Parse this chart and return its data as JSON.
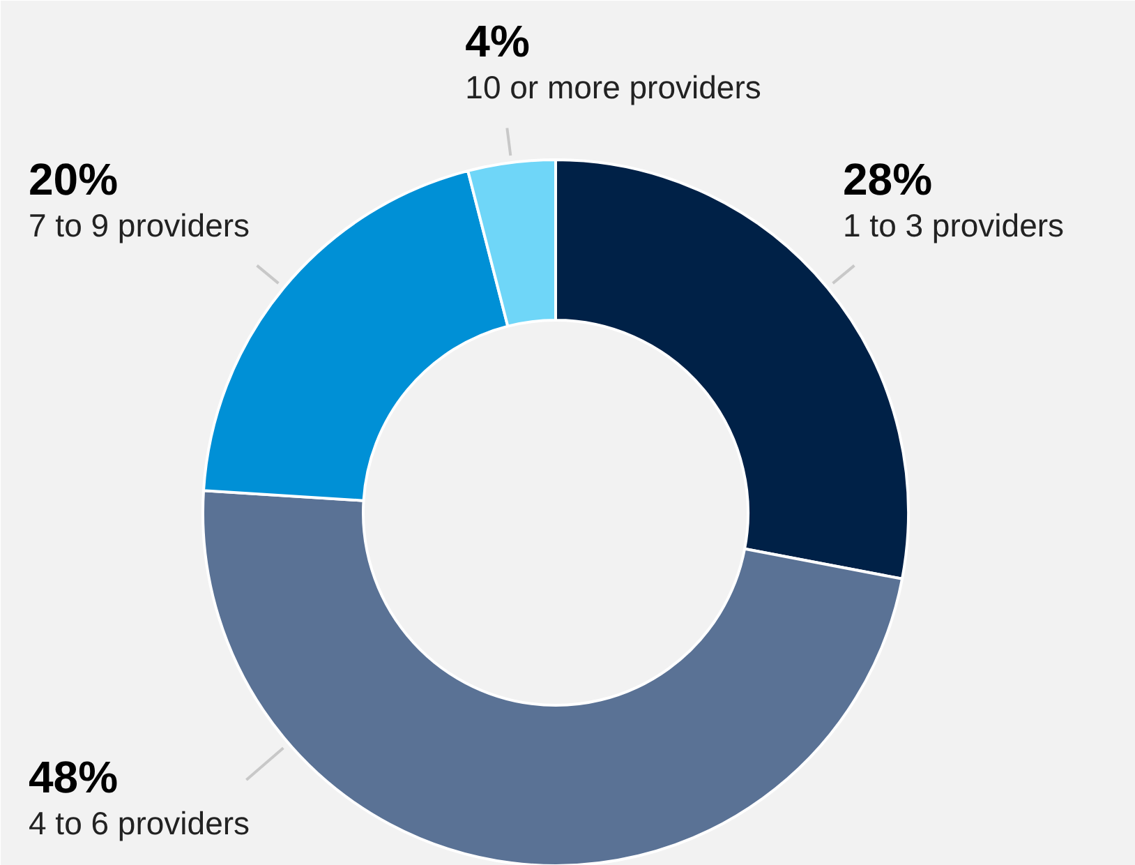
{
  "chart_data": {
    "type": "donut",
    "categories": [
      "1 to 3 providers",
      "4 to 6 providers",
      "7 to 9 providers",
      "10 or more providers"
    ],
    "values": [
      28,
      48,
      20,
      4
    ],
    "colors": [
      "#002147",
      "#5a7295",
      "#0090d6",
      "#6fd6f8"
    ],
    "value_labels": [
      "28%",
      "48%",
      "20%",
      "4%"
    ]
  }
}
